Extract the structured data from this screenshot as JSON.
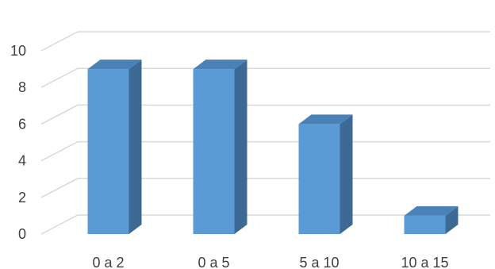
{
  "chart_data": {
    "type": "bar",
    "categories": [
      "0 a 2",
      "0 a 5",
      "5 a 10",
      "10 a 15"
    ],
    "values": [
      9,
      9,
      6,
      1
    ],
    "title": "",
    "xlabel": "",
    "ylabel": "",
    "ylim": [
      0,
      10
    ],
    "yticks": [
      0,
      2,
      4,
      6,
      8,
      10
    ],
    "grid": true,
    "style": "3d-column",
    "colors": {
      "front": "#5b9bd5",
      "side": "#3d6a94",
      "top": "#4a82b8",
      "grid": "#d9d9d9"
    }
  }
}
